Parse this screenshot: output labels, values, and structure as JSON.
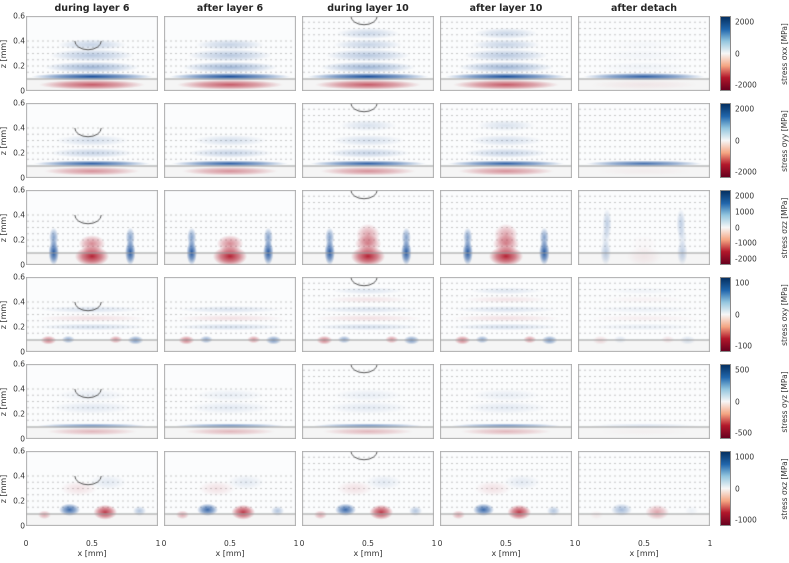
{
  "chart_data": {
    "type": "heatmap",
    "title": "",
    "grid": {
      "rows": 6,
      "cols": 5
    },
    "col_titles": [
      "during layer 6",
      "after layer 6",
      "during layer 10",
      "after layer 10",
      "after detach"
    ],
    "x": {
      "label": "x [mm]",
      "range": [
        0,
        1
      ],
      "ticks": [
        "0",
        "0.5",
        "1"
      ]
    },
    "z": {
      "label": "z [mm]",
      "range": [
        0,
        0.6
      ],
      "ticks": [
        "0",
        "0.2",
        "0.4",
        "0.6"
      ]
    },
    "substrate_interface_z": 0.1,
    "layer_thickness": 0.05,
    "deposit_top_by_col": [
      0.4,
      0.4,
      0.6,
      0.6,
      0.6
    ],
    "melt_pool_cols": [
      0,
      2
    ],
    "melt_pool": {
      "x": 0.47,
      "rx": 0.1,
      "rz": 0.07
    },
    "colormap": {
      "name": "RdBu (blue = positive, red = negative)",
      "positive": "#0c4596",
      "negative": "#b2182b",
      "scale": [
        "#053061",
        "#2166ac",
        "#92c5de",
        "#f7f7f7",
        "#f4a582",
        "#b2182b",
        "#67001f"
      ]
    },
    "rows": [
      {
        "label": "stress σxx [MPa]",
        "cbar_ticks": [
          "2000",
          "0",
          "-2000"
        ],
        "features": [
          {
            "x": 0.5,
            "z": 0.115,
            "rx": 0.46,
            "rz": 0.03,
            "v": 0.95,
            "d": 0.9
          },
          {
            "x": 0.5,
            "z": 0.05,
            "rx": 0.4,
            "rz": 0.04,
            "v": -0.7,
            "d": 0.1
          },
          {
            "x": 0.5,
            "z": 0.19,
            "rx": 0.36,
            "rz": 0.045,
            "v": 0.38,
            "d": 0.12
          },
          {
            "x": 0.5,
            "z": 0.285,
            "rx": 0.32,
            "rz": 0.05,
            "v": 0.28,
            "d": 0.12
          },
          {
            "x": 0.5,
            "z": 0.37,
            "rx": 0.26,
            "rz": 0.045,
            "v": 0.22,
            "d": 0.1
          },
          {
            "x": 0.5,
            "z": 0.46,
            "rx": 0.24,
            "rz": 0.045,
            "v": 0.2,
            "d": 0.1,
            "cols": [
              2,
              3
            ]
          }
        ]
      },
      {
        "label": "stress σyy [MPa]",
        "cbar_ticks": [
          "2000",
          "0",
          "-2000"
        ],
        "features": [
          {
            "x": 0.5,
            "z": 0.115,
            "rx": 0.44,
            "rz": 0.025,
            "v": 0.85,
            "d": 0.9
          },
          {
            "x": 0.5,
            "z": 0.055,
            "rx": 0.36,
            "rz": 0.035,
            "v": -0.45,
            "d": 0.1
          },
          {
            "x": 0.5,
            "z": 0.2,
            "rx": 0.32,
            "rz": 0.04,
            "v": 0.22,
            "d": 0.08
          },
          {
            "x": 0.5,
            "z": 0.3,
            "rx": 0.28,
            "rz": 0.045,
            "v": 0.16,
            "d": 0.08
          },
          {
            "x": 0.5,
            "z": 0.42,
            "rx": 0.22,
            "rz": 0.045,
            "v": 0.14,
            "d": 0.06,
            "cols": [
              2,
              3
            ]
          }
        ]
      },
      {
        "label": "stress σzz [MPa]",
        "cbar_ticks": [
          "2000",
          "1000",
          "0",
          "-1000",
          "-2000"
        ],
        "features": [
          {
            "x": 0.5,
            "z": 0.07,
            "rx": 0.13,
            "rz": 0.08,
            "v": -0.95,
            "d": 0.08
          },
          {
            "x": 0.5,
            "z": 0.17,
            "rx": 0.1,
            "rz": 0.07,
            "v": -0.5,
            "d": 0.05
          },
          {
            "x": 0.5,
            "z": 0.24,
            "rx": 0.09,
            "rz": 0.09,
            "v": -0.4,
            "d": 0,
            "cols": [
              2,
              3
            ]
          },
          {
            "x": 0.21,
            "z": 0.1,
            "rx": 0.04,
            "rz": 0.1,
            "v": 0.9,
            "d": 0.3
          },
          {
            "x": 0.79,
            "z": 0.1,
            "rx": 0.04,
            "rz": 0.1,
            "v": 0.9,
            "d": 0.3
          },
          {
            "x": 0.21,
            "z": 0.22,
            "rx": 0.035,
            "rz": 0.08,
            "v": 0.5,
            "d": 0.25
          },
          {
            "x": 0.79,
            "z": 0.22,
            "rx": 0.035,
            "rz": 0.08,
            "v": 0.5,
            "d": 0.25
          },
          {
            "x": 0.22,
            "z": 0.33,
            "rx": 0.035,
            "rz": 0.12,
            "v": 0.25,
            "d": 1,
            "cols": [
              4
            ]
          },
          {
            "x": 0.78,
            "z": 0.33,
            "rx": 0.035,
            "rz": 0.12,
            "v": 0.25,
            "d": 1,
            "cols": [
              4
            ]
          }
        ]
      },
      {
        "label": "stress σxy [MPa]",
        "cbar_ticks": [
          "100",
          "0",
          "-100"
        ],
        "features": [
          {
            "x": 0.17,
            "z": 0.095,
            "rx": 0.06,
            "rz": 0.035,
            "v": -0.55,
            "d": 0.3
          },
          {
            "x": 0.32,
            "z": 0.1,
            "rx": 0.05,
            "rz": 0.03,
            "v": 0.45,
            "d": 0.3
          },
          {
            "x": 0.68,
            "z": 0.1,
            "rx": 0.05,
            "rz": 0.03,
            "v": -0.45,
            "d": 0.3
          },
          {
            "x": 0.83,
            "z": 0.095,
            "rx": 0.06,
            "rz": 0.035,
            "v": 0.55,
            "d": 0.3
          },
          {
            "x": 0.5,
            "z": 0.2,
            "rx": 0.42,
            "rz": 0.028,
            "v": 0.16,
            "d": 0.5
          },
          {
            "x": 0.5,
            "z": 0.27,
            "rx": 0.42,
            "rz": 0.028,
            "v": -0.13,
            "d": 0.5
          },
          {
            "x": 0.5,
            "z": 0.34,
            "rx": 0.4,
            "rz": 0.028,
            "v": 0.14,
            "d": 0.5
          },
          {
            "x": 0.5,
            "z": 0.42,
            "rx": 0.32,
            "rz": 0.028,
            "v": -0.11,
            "d": 0.4,
            "cols": [
              2,
              3,
              4
            ]
          },
          {
            "x": 0.5,
            "z": 0.49,
            "rx": 0.28,
            "rz": 0.028,
            "v": 0.12,
            "d": 0.4,
            "cols": [
              2,
              3,
              4
            ]
          }
        ]
      },
      {
        "label": "stress σyz [MPa]",
        "cbar_ticks": [
          "500",
          "0",
          "-500"
        ],
        "features": [
          {
            "x": 0.5,
            "z": 0.105,
            "rx": 0.42,
            "rz": 0.02,
            "v": 0.55,
            "d": 0.25
          },
          {
            "x": 0.5,
            "z": 0.06,
            "rx": 0.34,
            "rz": 0.03,
            "v": -0.28,
            "d": 0.1
          },
          {
            "x": 0.5,
            "z": 0.25,
            "rx": 0.32,
            "rz": 0.05,
            "v": 0.1,
            "d": 0.08
          },
          {
            "x": 0.5,
            "z": 0.35,
            "rx": 0.26,
            "rz": 0.05,
            "v": 0.08,
            "d": 0.06
          }
        ]
      },
      {
        "label": "stress σxz [MPa]",
        "cbar_ticks": [
          "1000",
          "0",
          "-1000"
        ],
        "features": [
          {
            "x": 0.33,
            "z": 0.13,
            "rx": 0.08,
            "rz": 0.05,
            "v": 0.8,
            "d": 0.45
          },
          {
            "x": 0.6,
            "z": 0.11,
            "rx": 0.09,
            "rz": 0.06,
            "v": -0.85,
            "d": 0.45
          },
          {
            "x": 0.14,
            "z": 0.09,
            "rx": 0.05,
            "rz": 0.035,
            "v": -0.35,
            "d": 0.2
          },
          {
            "x": 0.86,
            "z": 0.12,
            "rx": 0.05,
            "rz": 0.04,
            "v": 0.3,
            "d": 0.2
          },
          {
            "x": 0.4,
            "z": 0.3,
            "rx": 0.14,
            "rz": 0.06,
            "v": -0.12,
            "d": 0.1
          },
          {
            "x": 0.62,
            "z": 0.35,
            "rx": 0.14,
            "rz": 0.06,
            "v": 0.1,
            "d": 0.1
          }
        ]
      }
    ]
  }
}
